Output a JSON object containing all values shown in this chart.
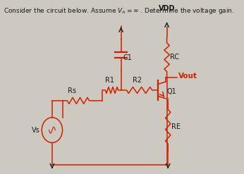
{
  "title_text": "Consider the circuit below. Assume $V_A = \\infty$ . Determine the voltage gain.",
  "bg_color": "#cdc8c0",
  "line_color": "#cc2200",
  "text_color": "#1a1a1a",
  "vdd_label": "VDD",
  "c1_label": "C1",
  "r1_label": "R1",
  "r2_label": "R2",
  "rs_label": "Rs",
  "rc_label": "RC",
  "vout_label": "Vout",
  "q1_label": "Q1",
  "re_label": "RE",
  "vs_label": "Vs"
}
